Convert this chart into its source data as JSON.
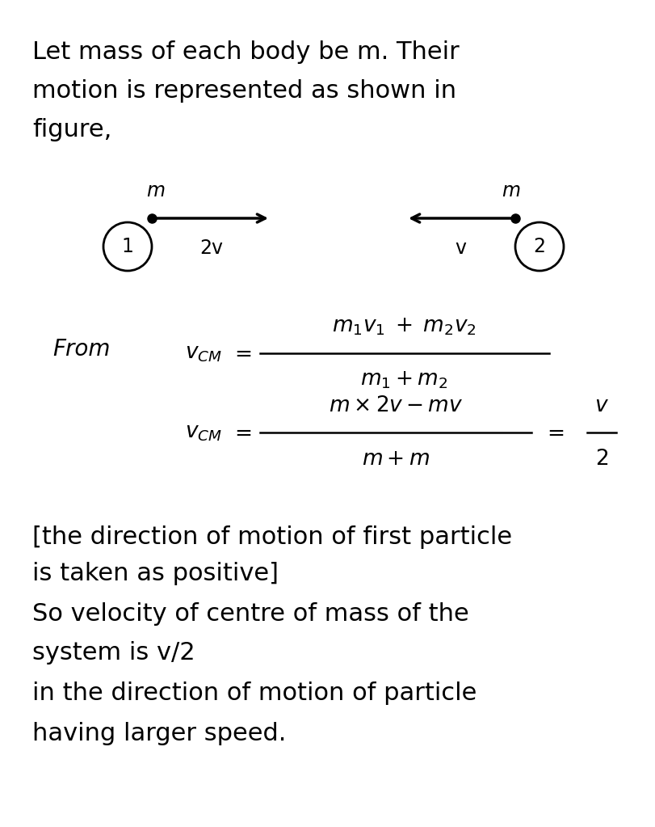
{
  "bg_color": "#ffffff",
  "text_color": "#000000",
  "line1": "Let mass of each body be m. Their",
  "line2": "motion is represented as shown in",
  "line3": "figure,",
  "particle1_label": "m",
  "particle2_label": "m",
  "circle1_label": "1",
  "circle2_label": "2",
  "arrow1_label": "2v",
  "arrow2_label": "v",
  "from_label": "From",
  "bottom1": "[the direction of motion of first particle",
  "bottom2": "is taken as positive]",
  "bottom3": "So velocity of centre of mass of the",
  "bottom4": "system is v/2",
  "bottom5": "in the direction of motion of particle",
  "bottom6": "having larger speed.",
  "font_size_body": 22,
  "font_size_eq": 19,
  "font_size_diag": 17,
  "font_size_from": 20
}
